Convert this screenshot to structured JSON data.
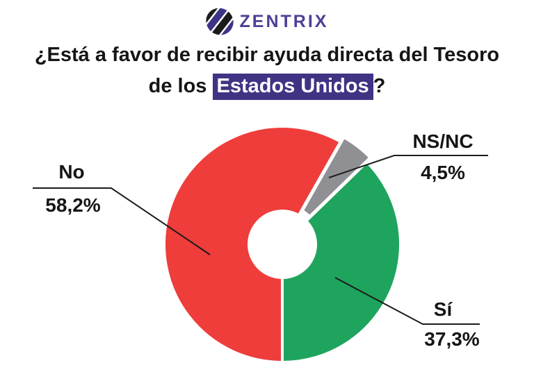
{
  "brand": {
    "name": "ZENTRIX"
  },
  "title": {
    "line1": "¿Está a favor de recibir ayuda directa del Tesoro",
    "line2_prefix": "de los",
    "line2_highlight": "Estados Unidos",
    "line2_suffix": "?"
  },
  "colors": {
    "brand_purple": "#4c3f96",
    "highlight_bg": "#413384",
    "no_red": "#ee3d3b",
    "nsnc_gray": "#909094",
    "si_green": "#1fa45e",
    "text_black": "#151515"
  },
  "chart_data": {
    "type": "pie",
    "donut": true,
    "title": "¿Está a favor de recibir ayuda directa del Tesoro de los Estados Unidos?",
    "start_angle_deg": 180,
    "direction": "clockwise",
    "inner_radius_ratio": 0.28,
    "slices": [
      {
        "label": "No",
        "value": 58.2,
        "display": "58,2%",
        "color": "#ee3d3b",
        "exploded": false
      },
      {
        "label": "NS/NC",
        "value": 4.5,
        "display": "4,5%",
        "color": "#909094",
        "exploded": true
      },
      {
        "label": "Sí",
        "value": 37.3,
        "display": "37,3%",
        "color": "#1fa45e",
        "exploded": false
      }
    ]
  }
}
